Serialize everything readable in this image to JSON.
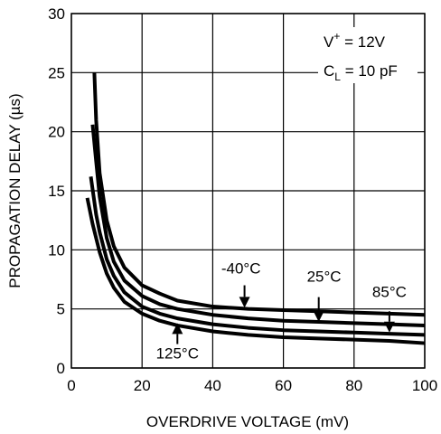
{
  "chart_data": {
    "type": "line",
    "xlabel": "OVERDRIVE VOLTAGE (mV)",
    "ylabel": "PROPAGATION DELAY (µs)",
    "xlim": [
      0,
      100
    ],
    "ylim": [
      0,
      30
    ],
    "x_ticks": [
      "0",
      "20",
      "40",
      "60",
      "80",
      "100"
    ],
    "y_ticks": [
      "0",
      "5",
      "10",
      "15",
      "20",
      "25",
      "30"
    ],
    "grid": true,
    "conditions": {
      "line1_main": "V",
      "line1_sup": "+",
      "line1_rest": " = 12V",
      "line2_main": "C",
      "line2_sub": "L",
      "line2_rest": " = 10 pF"
    },
    "series": [
      {
        "name": "-40°C",
        "x": [
          6.5,
          7,
          8,
          10,
          12,
          15,
          20,
          25,
          30,
          40,
          50,
          60,
          70,
          80,
          90,
          100
        ],
        "y": [
          25.0,
          21.0,
          16.5,
          12.5,
          10.3,
          8.5,
          7.0,
          6.3,
          5.7,
          5.2,
          5.0,
          4.9,
          4.8,
          4.7,
          4.6,
          4.5
        ]
      },
      {
        "name": "25°C",
        "x": [
          6,
          7,
          8,
          10,
          12,
          15,
          20,
          25,
          30,
          40,
          50,
          60,
          70,
          80,
          90,
          100
        ],
        "y": [
          20.6,
          17.5,
          14.5,
          11.0,
          9.0,
          7.4,
          6.1,
          5.4,
          5.0,
          4.5,
          4.2,
          4.0,
          3.9,
          3.8,
          3.7,
          3.6
        ]
      },
      {
        "name": "85°C",
        "x": [
          5.5,
          7,
          8,
          10,
          12,
          15,
          20,
          25,
          30,
          40,
          50,
          60,
          70,
          80,
          90,
          100
        ],
        "y": [
          16.2,
          13.0,
          11.5,
          9.2,
          7.8,
          6.4,
          5.2,
          4.6,
          4.2,
          3.7,
          3.4,
          3.2,
          3.1,
          3.0,
          2.9,
          2.8
        ]
      },
      {
        "name": "125°C",
        "x": [
          4.5,
          6,
          8,
          10,
          12,
          15,
          20,
          25,
          30,
          40,
          50,
          60,
          70,
          80,
          90,
          100
        ],
        "y": [
          14.4,
          12.2,
          9.8,
          8.0,
          6.8,
          5.6,
          4.6,
          4.0,
          3.6,
          3.1,
          2.8,
          2.6,
          2.5,
          2.4,
          2.3,
          2.1
        ]
      }
    ],
    "annotations": [
      {
        "text": "-40°C",
        "arrow_x": 49,
        "arrow_tip_y": 5.1,
        "arrow_tail_y": 7.0,
        "label_x": 48,
        "label_y": 8.0,
        "dir": "down"
      },
      {
        "text": "25°C",
        "arrow_x": 70,
        "arrow_tip_y": 3.9,
        "arrow_tail_y": 6.0,
        "label_x": 71.5,
        "label_y": 7.3,
        "dir": "down"
      },
      {
        "text": "85°C",
        "arrow_x": 90,
        "arrow_tip_y": 3.0,
        "arrow_tail_y": 4.8,
        "label_x": 90,
        "label_y": 6.0,
        "dir": "down"
      },
      {
        "text": "125°C",
        "arrow_x": 30,
        "arrow_tip_y": 3.8,
        "arrow_tail_y": 2.0,
        "label_x": 30,
        "label_y": 0.8,
        "dir": "up"
      }
    ]
  }
}
